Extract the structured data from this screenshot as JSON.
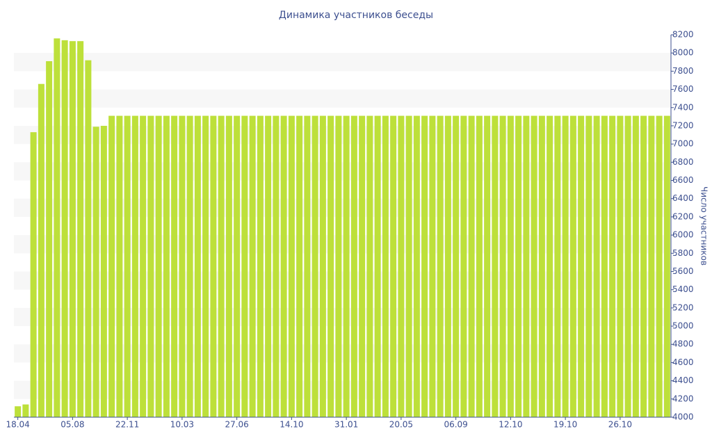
{
  "chart_data": {
    "type": "bar",
    "title": "Динамика участников беседы",
    "y_label": "Число участников",
    "categories": [
      "18.04",
      null,
      null,
      null,
      null,
      null,
      null,
      "05.08",
      null,
      null,
      null,
      null,
      null,
      null,
      "22.11",
      null,
      null,
      null,
      null,
      null,
      null,
      "10.03",
      null,
      null,
      null,
      null,
      null,
      null,
      "27.06",
      null,
      null,
      null,
      null,
      null,
      null,
      "14.10",
      null,
      null,
      null,
      null,
      null,
      null,
      "31.01",
      null,
      null,
      null,
      null,
      null,
      null,
      "20.05",
      null,
      null,
      null,
      null,
      null,
      null,
      "06.09",
      null,
      null,
      null,
      null,
      null,
      null,
      "12.10",
      null,
      null,
      null,
      null,
      null,
      null,
      "19.10",
      null,
      null,
      null,
      null,
      null,
      null,
      "26.10",
      null,
      null,
      null,
      null,
      null,
      null
    ],
    "values": [
      4120,
      4140,
      7130,
      7660,
      7910,
      8160,
      8140,
      8130,
      8130,
      7920,
      7190,
      7200,
      7310,
      7310,
      7310,
      7310,
      7310,
      7310,
      7310,
      7310,
      7310,
      7310,
      7310,
      7310,
      7310,
      7310,
      7310,
      7310,
      7310,
      7310,
      7310,
      7310,
      7310,
      7310,
      7310,
      7310,
      7310,
      7310,
      7310,
      7310,
      7310,
      7310,
      7310,
      7310,
      7310,
      7310,
      7310,
      7310,
      7310,
      7310,
      7310,
      7310,
      7310,
      7310,
      7310,
      7310,
      7310,
      7310,
      7310,
      7310,
      7310,
      7310,
      7310,
      7310,
      7310,
      7310,
      7310,
      7310,
      7310,
      7310,
      7310,
      7310,
      7310,
      7310,
      7310,
      7310,
      7310,
      7310,
      7310,
      7310,
      7310,
      7310,
      7310,
      7310
    ],
    "color": "#bde03a",
    "ylim": [
      4000,
      8200
    ],
    "yticks": [
      4000,
      4200,
      4400,
      4600,
      4800,
      5000,
      5200,
      5400,
      5600,
      5800,
      6000,
      6200,
      6400,
      6600,
      6800,
      7000,
      7200,
      7400,
      7600,
      7800,
      8000,
      8200
    ],
    "grid": true
  }
}
